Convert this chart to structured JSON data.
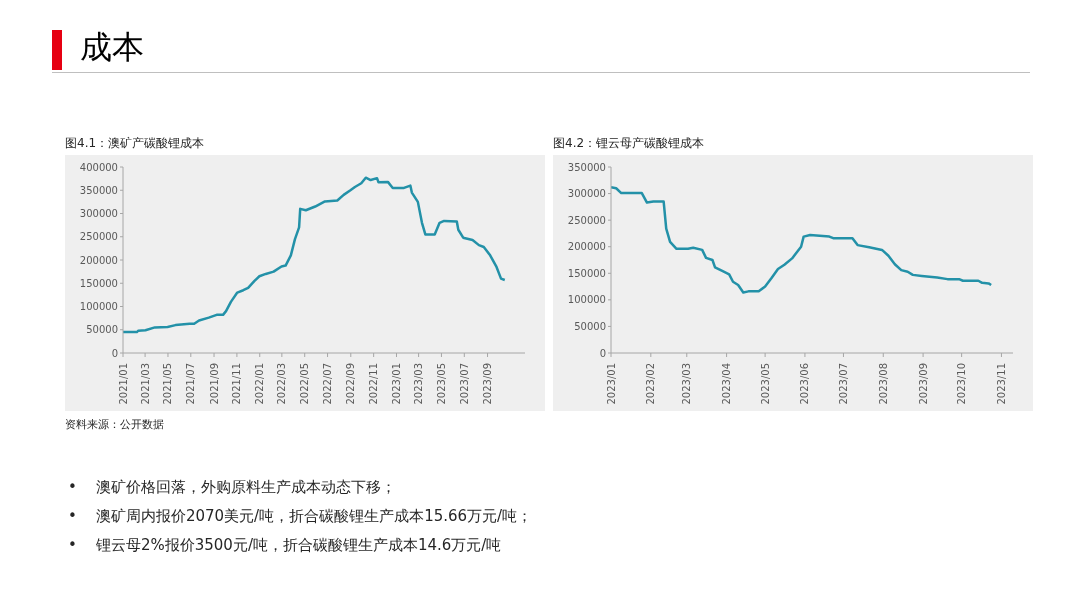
{
  "chart_data": [
    {
      "type": "line",
      "title": "图4.1：澳矿产碳酸锂成本",
      "color": "#2391a8",
      "x": [
        "2021-01-01",
        "2021-02-07",
        "2021-02-11",
        "2021-03-02",
        "2021-03-27",
        "2021-04-30",
        "2021-05-21",
        "2021-06-28",
        "2021-07-10",
        "2021-07-23",
        "2021-08-18",
        "2021-09-08",
        "2021-09-25",
        "2021-10-03",
        "2021-10-16",
        "2021-11-02",
        "2021-11-18",
        "2021-12-01",
        "2021-12-18",
        "2021-12-31",
        "2022-01-17",
        "2022-02-07",
        "2022-02-28",
        "2022-03-11",
        "2022-03-25",
        "2022-04-05",
        "2022-04-16",
        "2022-04-19",
        "2022-05-04",
        "2022-05-29",
        "2022-06-24",
        "2022-07-27",
        "2022-08-13",
        "2022-08-31",
        "2022-09-12",
        "2022-09-29",
        "2022-10-11",
        "2022-10-24",
        "2022-11-10",
        "2022-11-14",
        "2022-12-09",
        "2022-12-22",
        "2023-01-21",
        "2023-02-07",
        "2023-02-11",
        "2023-02-27",
        "2023-03-10",
        "2023-03-19",
        "2023-04-13",
        "2023-04-26",
        "2023-05-08",
        "2023-06-11",
        "2023-06-15",
        "2023-06-28",
        "2023-07-23",
        "2023-08-09",
        "2023-08-22",
        "2023-09-08",
        "2023-09-25",
        "2023-10-07",
        "2023-10-17"
      ],
      "values": [
        45000,
        45000,
        48000,
        49000,
        55000,
        56000,
        60000,
        63000,
        63000,
        70000,
        76000,
        82000,
        82000,
        90000,
        110000,
        130000,
        135000,
        140000,
        155000,
        165000,
        170000,
        175000,
        186000,
        188000,
        210000,
        245000,
        270000,
        310000,
        307000,
        315000,
        326000,
        328000,
        340000,
        350000,
        357000,
        365000,
        377000,
        372000,
        376000,
        367000,
        368000,
        355000,
        355000,
        360000,
        345000,
        325000,
        280000,
        255000,
        255000,
        280000,
        284000,
        283000,
        265000,
        248000,
        243000,
        232000,
        228000,
        210000,
        185000,
        160000,
        157000
      ],
      "xlim": [
        "2021-01-01",
        "2023-12-10"
      ],
      "xticks": [
        {
          "value": "2021-01",
          "label": "2021/01"
        },
        {
          "value": "2021-03",
          "label": "2021/03"
        },
        {
          "value": "2021-05",
          "label": "2021/05"
        },
        {
          "value": "2021-07",
          "label": "2021/07"
        },
        {
          "value": "2021-09",
          "label": "2021/09"
        },
        {
          "value": "2021-11",
          "label": "2021/11"
        },
        {
          "value": "2022-01",
          "label": "2022/01"
        },
        {
          "value": "2022-03",
          "label": "2022/03"
        },
        {
          "value": "2022-05",
          "label": "2022/05"
        },
        {
          "value": "2022-07",
          "label": "2022/07"
        },
        {
          "value": "2022-09",
          "label": "2022/09"
        },
        {
          "value": "2022-11",
          "label": "2022/11"
        },
        {
          "value": "2023-01",
          "label": "2023/01"
        },
        {
          "value": "2023-03",
          "label": "2023/03"
        },
        {
          "value": "2023-05",
          "label": "2023/05"
        },
        {
          "value": "2023-07",
          "label": "2023/07"
        },
        {
          "value": "2023-09",
          "label": "2023/09"
        }
      ],
      "ylim": [
        0,
        400000
      ],
      "yticks": [
        0,
        50000,
        100000,
        150000,
        200000,
        250000,
        300000,
        350000,
        400000
      ],
      "annotations": [
        "资料来源：公开数据"
      ]
    },
    {
      "type": "line",
      "title": "图4.2：锂云母产碳酸锂成本",
      "color": "#2391a8",
      "x": [
        "2023-01-01",
        "2023-01-05",
        "2023-01-09",
        "2023-01-25",
        "2023-01-29",
        "2023-02-03",
        "2023-02-11",
        "2023-02-13",
        "2023-02-16",
        "2023-02-21",
        "2023-03-02",
        "2023-03-06",
        "2023-03-13",
        "2023-03-16",
        "2023-03-21",
        "2023-03-23",
        "2023-03-29",
        "2023-04-03",
        "2023-04-06",
        "2023-04-10",
        "2023-04-14",
        "2023-04-18",
        "2023-04-26",
        "2023-05-01",
        "2023-05-06",
        "2023-05-11",
        "2023-05-16",
        "2023-05-22",
        "2023-05-29",
        "2023-05-31",
        "2023-06-05",
        "2023-06-20",
        "2023-06-23",
        "2023-07-08",
        "2023-07-12",
        "2023-07-21",
        "2023-07-31",
        "2023-08-05",
        "2023-08-10",
        "2023-08-15",
        "2023-08-20",
        "2023-08-24",
        "2023-08-31",
        "2023-09-12",
        "2023-09-20",
        "2023-09-29",
        "2023-10-02",
        "2023-10-14",
        "2023-10-17",
        "2023-10-22",
        "2023-10-24"
      ],
      "values": [
        312000,
        310000,
        301000,
        301000,
        283000,
        285000,
        285000,
        234000,
        209000,
        196000,
        196000,
        198000,
        194000,
        179000,
        175000,
        161000,
        154000,
        148000,
        134000,
        128000,
        114000,
        116000,
        116000,
        125000,
        141000,
        158000,
        166000,
        178000,
        200000,
        219000,
        222000,
        219000,
        216000,
        216000,
        203000,
        199000,
        194000,
        183000,
        167000,
        156000,
        153000,
        147000,
        145000,
        142000,
        139000,
        139000,
        136000,
        136000,
        132000,
        131000,
        128000
      ],
      "xlim": [
        "2023-01-01",
        "2023-11-10"
      ],
      "xticks": [
        {
          "value": "2023-01",
          "label": "2023/01"
        },
        {
          "value": "2023-02",
          "label": "2023/02"
        },
        {
          "value": "2023-03",
          "label": "2023/03"
        },
        {
          "value": "2023-04",
          "label": "2023/04"
        },
        {
          "value": "2023-05",
          "label": "2023/05"
        },
        {
          "value": "2023-06",
          "label": "2023/06"
        },
        {
          "value": "2023-07",
          "label": "2023/07"
        },
        {
          "value": "2023-08",
          "label": "2023/08"
        },
        {
          "value": "2023-09",
          "label": "2023/09"
        },
        {
          "value": "2023-10",
          "label": "2023/10"
        },
        {
          "value": "2023-11",
          "label": "2023/11"
        }
      ],
      "ylim": [
        0,
        350000
      ],
      "yticks": [
        0,
        50000,
        100000,
        150000,
        200000,
        250000,
        300000,
        350000
      ]
    },
    {
      "type": "other",
      "title": "成本",
      "annotations": [
        "•    澳矿价格回落，外购原料生产成本动态下移；",
        "•    澳矿周内报价2070美元/吨，折合碳酸锂生产成本15.66万元/吨；",
        "•    锂云母2%报价3500元/吨，折合碳酸锂生产成本14.6万元/吨"
      ]
    }
  ]
}
